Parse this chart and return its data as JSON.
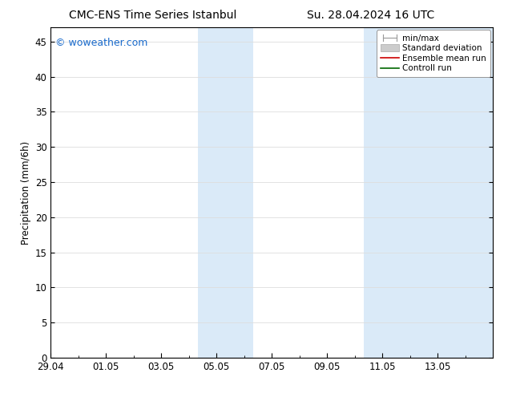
{
  "title_left": "CMC-ENS Time Series Istanbul",
  "title_right": "Su. 28.04.2024 16 UTC",
  "ylabel": "Precipitation (mm/6h)",
  "watermark": "© woweather.com",
  "watermark_color": "#1a6bcc",
  "xlim": [
    0,
    16
  ],
  "ylim": [
    0,
    47
  ],
  "yticks": [
    0,
    5,
    10,
    15,
    20,
    25,
    30,
    35,
    40,
    45
  ],
  "xtick_labels": [
    "29.04",
    "01.05",
    "03.05",
    "05.05",
    "07.05",
    "09.05",
    "11.05",
    "13.05"
  ],
  "xtick_positions": [
    0,
    2,
    4,
    6,
    8,
    10,
    12,
    14
  ],
  "shaded_regions": [
    {
      "xmin": 5.33,
      "xmax": 7.33,
      "color": "#daeaf8"
    },
    {
      "xmin": 11.33,
      "xmax": 16.0,
      "color": "#daeaf8"
    }
  ],
  "legend_items": [
    {
      "label": "min/max",
      "color": "#aaaaaa",
      "type": "minmax"
    },
    {
      "label": "Standard deviation",
      "color": "#cccccc",
      "type": "stddev"
    },
    {
      "label": "Ensemble mean run",
      "color": "#cc0000",
      "type": "line"
    },
    {
      "label": "Controll run",
      "color": "#006600",
      "type": "line"
    }
  ],
  "background_color": "#ffffff",
  "plot_bg_color": "#ffffff",
  "grid_color": "#dddddd",
  "tick_fontsize": 8.5,
  "title_fontsize": 10,
  "ylabel_fontsize": 8.5,
  "watermark_fontsize": 9,
  "legend_fontsize": 7.5
}
